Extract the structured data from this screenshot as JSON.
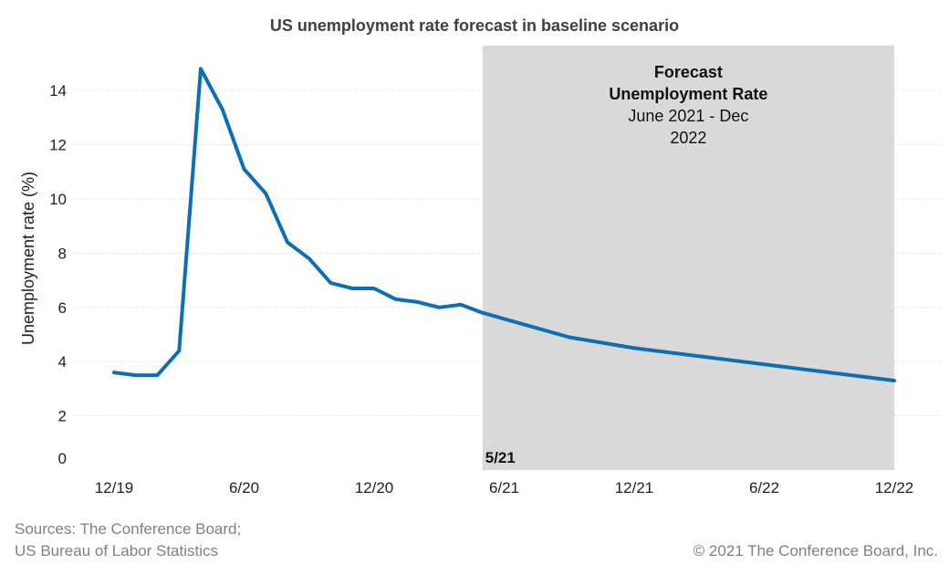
{
  "chart_data": {
    "type": "line",
    "title": "US unemployment rate forecast in baseline scenario",
    "ylabel": "Unemployment rate (%)",
    "xlabel": "",
    "ylim": [
      0,
      15
    ],
    "y_ticks": [
      0,
      2,
      4,
      6,
      8,
      10,
      12,
      14
    ],
    "x_ticks": [
      "12/19",
      "6/20",
      "12/20",
      "6/21",
      "12/21",
      "6/22",
      "12/22"
    ],
    "grid": "horizontal",
    "color": "#0a6fb4",
    "shade_color": "#d9d9d9",
    "series": [
      {
        "x": [
          "12/19",
          "1/20",
          "2/20",
          "3/20",
          "4/20",
          "5/20",
          "6/20",
          "7/20",
          "8/20",
          "9/20",
          "10/20",
          "11/20",
          "12/20",
          "1/21",
          "2/21",
          "3/21",
          "4/21",
          "5/21",
          "9/21",
          "12/21",
          "12/22"
        ],
        "values": [
          3.6,
          3.5,
          3.5,
          4.4,
          14.8,
          13.3,
          11.1,
          10.2,
          8.4,
          7.8,
          6.9,
          6.7,
          6.7,
          6.3,
          6.2,
          6.0,
          6.1,
          5.8,
          4.9,
          4.5,
          3.3
        ]
      }
    ],
    "forecast_region": {
      "start": "5/21",
      "end": "12/22",
      "title": "Forecast\nUnemployment Rate",
      "subtitle": "June 2021 - Dec\n2022",
      "marker_label": "5/21"
    }
  },
  "footer": {
    "source_line1": "Sources: The Conference Board;",
    "source_line2": "US Bureau of Labor Statistics",
    "copyright": "© 2021 The Conference Board, Inc."
  }
}
